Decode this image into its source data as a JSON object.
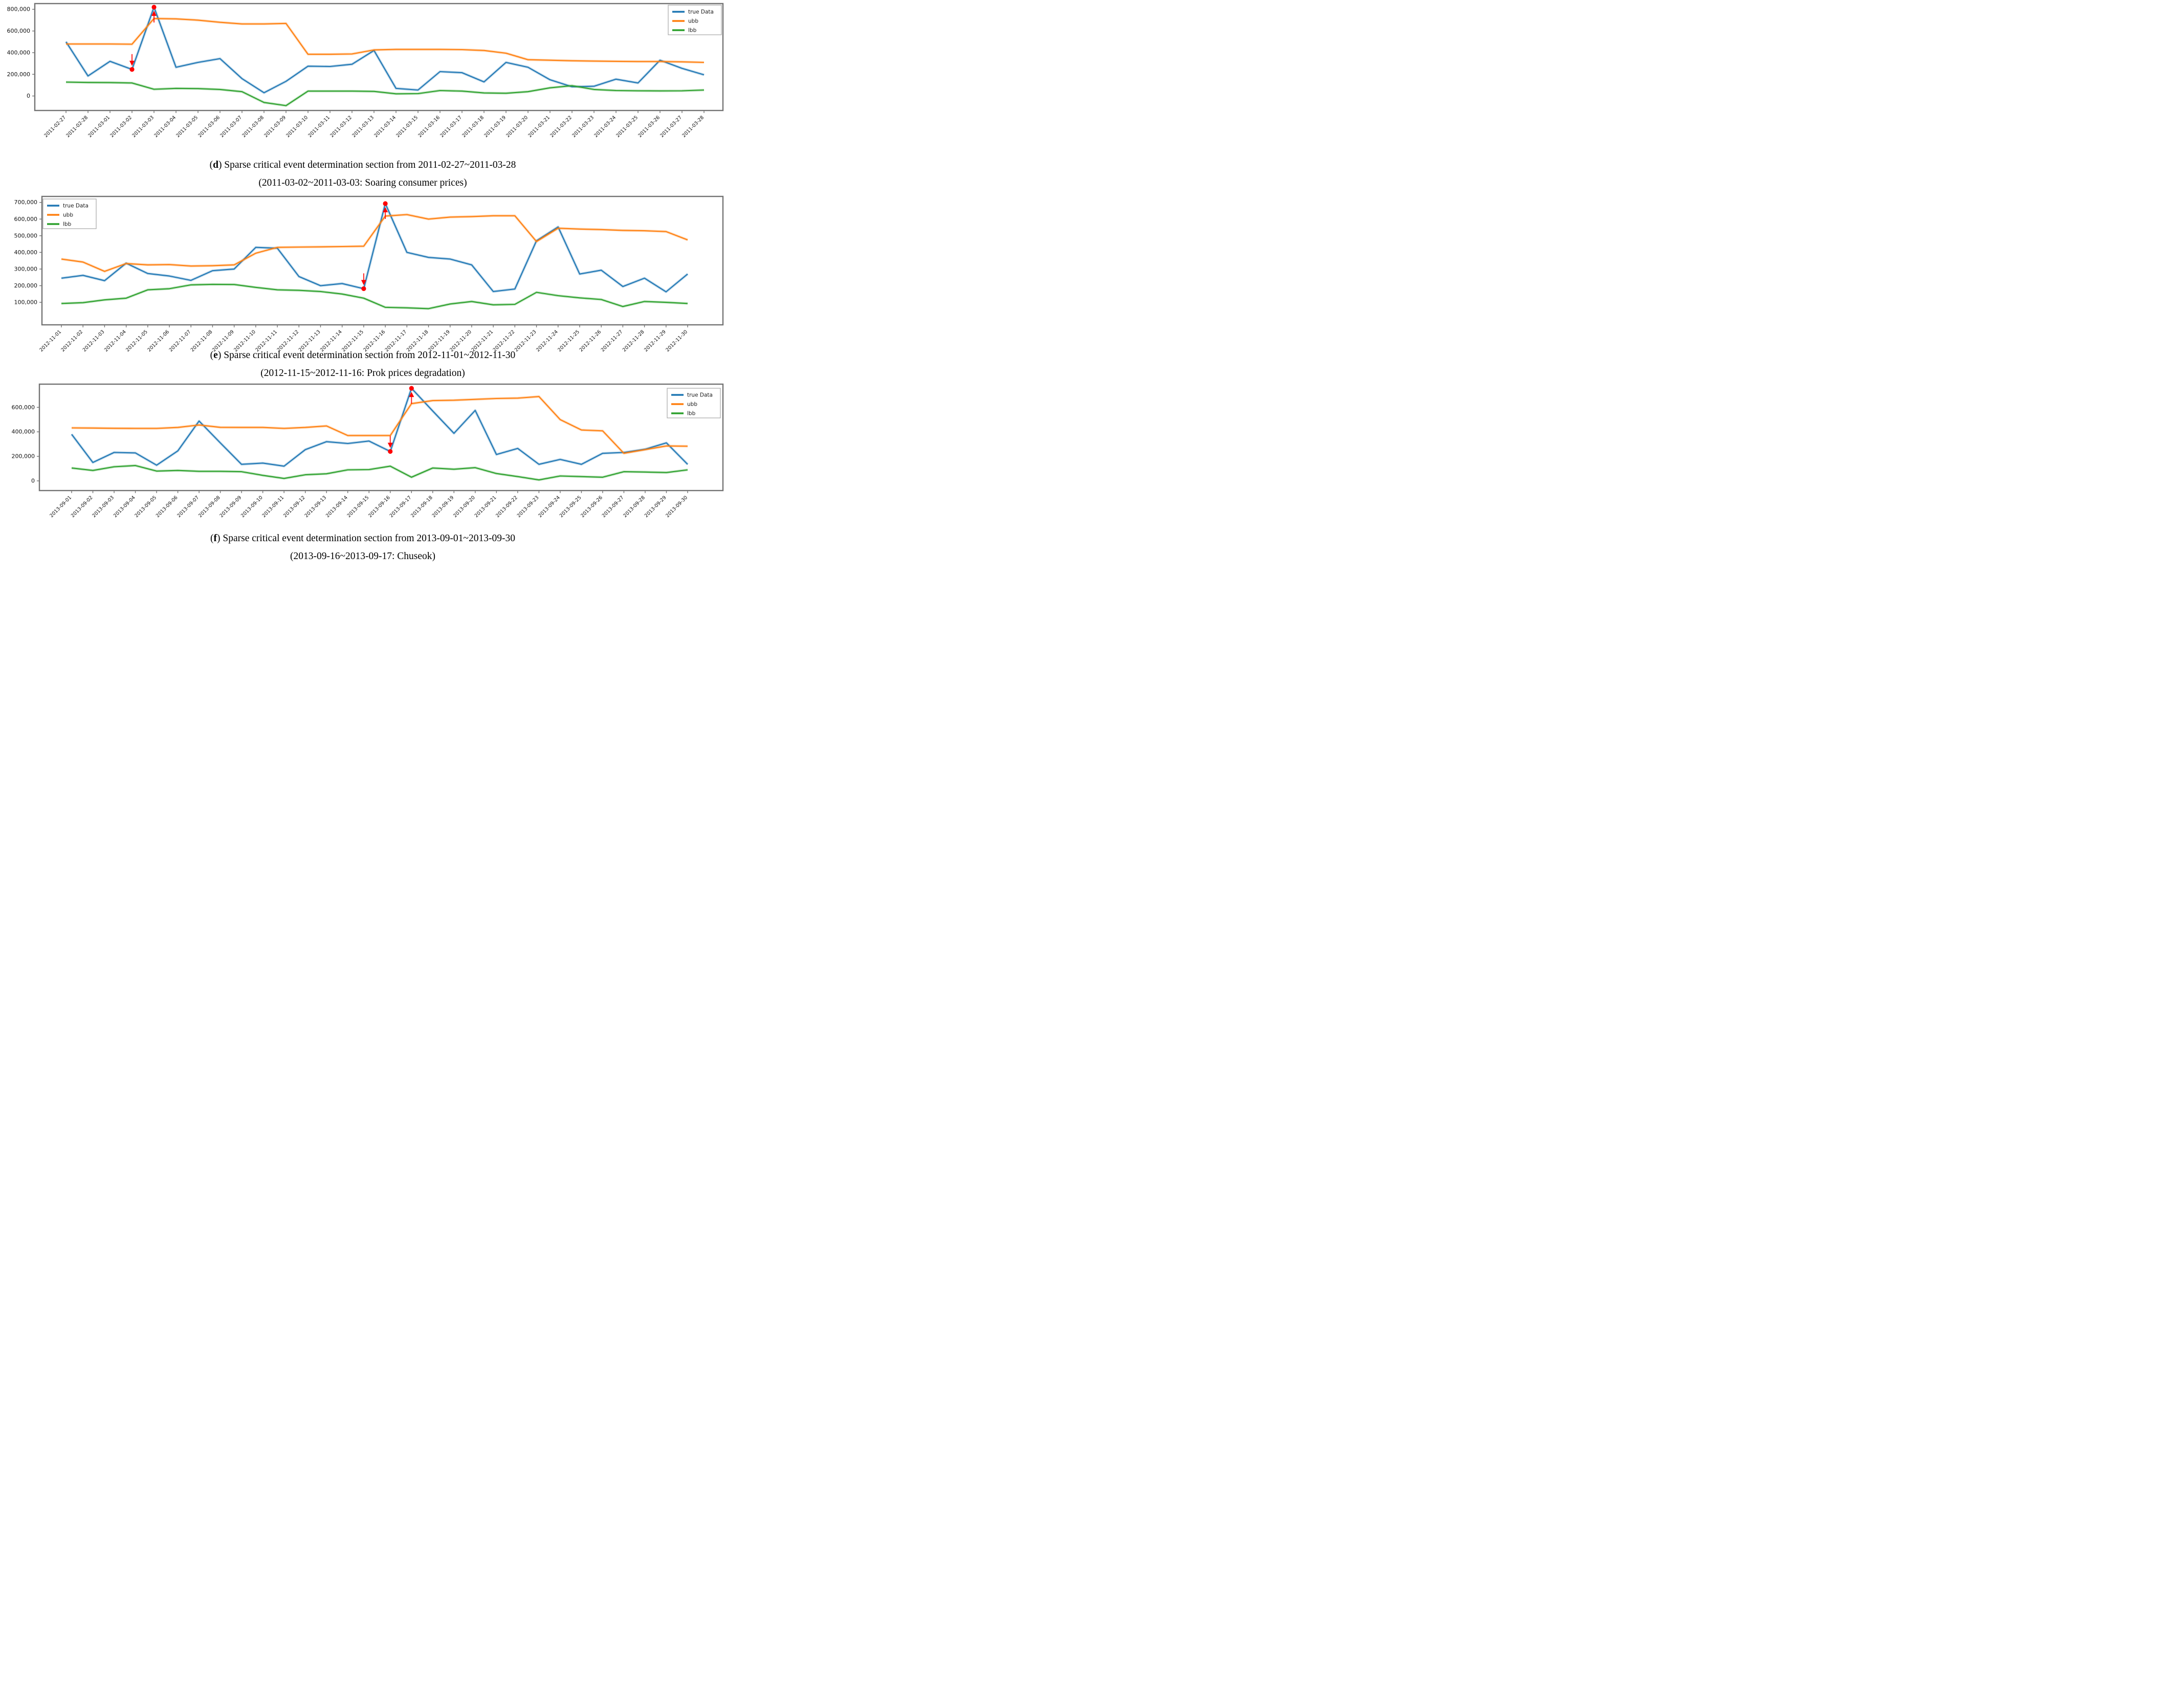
{
  "figure": {
    "panels": [
      {
        "letter": "d",
        "cap_open": "(",
        "line1_rest": ") Sparse critical event determination section from 2011-02-27~2011-03-28",
        "line2": "(2011-03-02~2011-03-03: Soaring consumer prices)"
      },
      {
        "letter": "e",
        "cap_open": "(",
        "line1_rest": ") Sparse critical event determination section from 2012-11-01~2012-11-30",
        "line2": "(2012-11-15~2012-11-16: Prok prices degradation)"
      },
      {
        "letter": "f",
        "cap_open": "(",
        "line1_rest": ") Sparse critical event determination section from 2013-09-01~2013-09-30",
        "line2": "(2013-09-16~2013-09-17: Chuseok)"
      }
    ]
  },
  "chart_data": [
    {
      "id": "d",
      "type": "line",
      "title": "",
      "grid": false,
      "legend_position": "upper right",
      "legend_labels": [
        "true Data",
        "ubb",
        "lbb"
      ],
      "x_dates": [
        "2011-02-27",
        "2011-02-28",
        "2011-03-01",
        "2011-03-02",
        "2011-03-03",
        "2011-03-04",
        "2011-03-05",
        "2011-03-06",
        "2011-03-07",
        "2011-03-08",
        "2011-03-09",
        "2011-03-10",
        "2011-03-11",
        "2011-03-12",
        "2011-03-13",
        "2011-03-14",
        "2011-03-15",
        "2011-03-16",
        "2011-03-17",
        "2011-03-18",
        "2011-03-19",
        "2011-03-20",
        "2011-03-21",
        "2011-03-22",
        "2011-03-23",
        "2011-03-24",
        "2011-03-25",
        "2011-03-26",
        "2011-03-27",
        "2011-03-28"
      ],
      "ylim": [
        -134000,
        853000
      ],
      "yticks": [
        0,
        200000,
        400000,
        600000,
        800000
      ],
      "series": [
        {
          "name": "true Data",
          "color": "#1f77b4",
          "values": [
            500000,
            185000,
            320000,
            245000,
            820000,
            265000,
            310000,
            345000,
            160000,
            30000,
            135000,
            275000,
            272000,
            293000,
            420000,
            70000,
            55000,
            225000,
            215000,
            130000,
            310000,
            265000,
            150000,
            85000,
            90000,
            155000,
            120000,
            330000,
            255000,
            195000
          ]
        },
        {
          "name": "ubb",
          "color": "#ff7f0e",
          "values": [
            480000,
            480000,
            480000,
            478000,
            715000,
            712000,
            700000,
            680000,
            665000,
            665000,
            670000,
            385000,
            385000,
            388000,
            425000,
            430000,
            430000,
            430000,
            428000,
            420000,
            395000,
            335000,
            330000,
            325000,
            322000,
            320000,
            318000,
            318000,
            315000,
            310000
          ]
        },
        {
          "name": "lbb",
          "color": "#2ca02c",
          "values": [
            128000,
            125000,
            124000,
            120000,
            62000,
            70000,
            68000,
            60000,
            40000,
            -60000,
            -89000,
            45000,
            45000,
            45000,
            42000,
            20000,
            22000,
            50000,
            45000,
            28000,
            25000,
            40000,
            75000,
            95000,
            60000,
            50000,
            48000,
            47000,
            48000,
            55000
          ]
        }
      ],
      "markers": [
        {
          "date": "2011-03-02",
          "value": 245000,
          "direction": "down",
          "color": "#ff0000"
        },
        {
          "date": "2011-03-03",
          "value": 820000,
          "direction": "up",
          "color": "#ff0000"
        }
      ]
    },
    {
      "id": "e",
      "type": "line",
      "title": "",
      "grid": false,
      "legend_position": "upper left",
      "legend_labels": [
        "true Data",
        "ubb",
        "lbb"
      ],
      "x_dates": [
        "2012-11-01",
        "2012-11-02",
        "2012-11-03",
        "2012-11-04",
        "2012-11-05",
        "2012-11-06",
        "2012-11-07",
        "2012-11-08",
        "2012-11-09",
        "2012-11-10",
        "2012-11-11",
        "2012-11-12",
        "2012-11-13",
        "2012-11-14",
        "2012-11-15",
        "2012-11-16",
        "2012-11-17",
        "2012-11-18",
        "2012-11-19",
        "2012-11-20",
        "2012-11-21",
        "2012-11-22",
        "2012-11-23",
        "2012-11-24",
        "2012-11-25",
        "2012-11-26",
        "2012-11-27",
        "2012-11-28",
        "2012-11-29",
        "2012-11-30"
      ],
      "ylim": [
        -35000,
        736000
      ],
      "yticks": [
        100000,
        200000,
        300000,
        400000,
        500000,
        600000,
        700000
      ],
      "series": [
        {
          "name": "true Data",
          "color": "#1f77b4",
          "values": [
            245000,
            262000,
            230000,
            335000,
            273000,
            258000,
            232000,
            290000,
            300000,
            430000,
            425000,
            255000,
            200000,
            213000,
            182000,
            693000,
            400000,
            370000,
            360000,
            325000,
            165000,
            180000,
            470000,
            553000,
            270000,
            293000,
            195000,
            245000,
            163000,
            270000
          ]
        },
        {
          "name": "ubb",
          "color": "#ff7f0e",
          "values": [
            360000,
            342000,
            286000,
            333000,
            325000,
            327000,
            318000,
            320000,
            325000,
            395000,
            430000,
            432000,
            433000,
            435000,
            437000,
            618000,
            627000,
            600000,
            612000,
            615000,
            620000,
            620000,
            465000,
            545000,
            540000,
            537000,
            532000,
            530000,
            525000,
            475000
          ]
        },
        {
          "name": "lbb",
          "color": "#2ca02c",
          "values": [
            93000,
            98000,
            115000,
            125000,
            175000,
            182000,
            205000,
            208000,
            207000,
            190000,
            175000,
            172000,
            165000,
            150000,
            125000,
            70000,
            67000,
            62000,
            90000,
            105000,
            85000,
            88000,
            160000,
            140000,
            127000,
            117000,
            75000,
            105000,
            100000,
            93000
          ]
        }
      ],
      "markers": [
        {
          "date": "2012-11-15",
          "value": 182000,
          "direction": "down",
          "color": "#ff0000"
        },
        {
          "date": "2012-11-16",
          "value": 693000,
          "direction": "up",
          "color": "#ff0000"
        }
      ]
    },
    {
      "id": "f",
      "type": "line",
      "title": "",
      "grid": false,
      "legend_position": "upper right",
      "legend_labels": [
        "true Data",
        "ubb",
        "lbb"
      ],
      "x_dates": [
        "2013-09-01",
        "2013-09-02",
        "2013-09-03",
        "2013-09-04",
        "2013-09-05",
        "2013-09-06",
        "2013-09-07",
        "2013-09-08",
        "2013-09-09",
        "2013-09-10",
        "2013-09-11",
        "2013-09-12",
        "2013-09-13",
        "2013-09-14",
        "2013-09-15",
        "2013-09-16",
        "2013-09-17",
        "2013-09-18",
        "2013-09-19",
        "2013-09-20",
        "2013-09-21",
        "2013-09-22",
        "2013-09-23",
        "2013-09-24",
        "2013-09-25",
        "2013-09-26",
        "2013-09-27",
        "2013-09-28",
        "2013-09-29",
        "2013-09-30"
      ],
      "ylim": [
        -79000,
        789000
      ],
      "yticks": [
        0,
        200000,
        400000,
        600000
      ],
      "series": [
        {
          "name": "true Data",
          "color": "#1f77b4",
          "values": [
            380000,
            150000,
            232000,
            228000,
            128000,
            245000,
            488000,
            310000,
            135000,
            145000,
            120000,
            255000,
            320000,
            305000,
            325000,
            240000,
            755000,
            570000,
            388000,
            575000,
            215000,
            265000,
            135000,
            175000,
            135000,
            225000,
            232000,
            258000,
            310000,
            135000
          ]
        },
        {
          "name": "ubb",
          "color": "#ff7f0e",
          "values": [
            432000,
            431000,
            429000,
            428000,
            428000,
            436000,
            456000,
            437000,
            436000,
            436000,
            428000,
            436000,
            448000,
            370000,
            370000,
            370000,
            630000,
            655000,
            658000,
            665000,
            672000,
            675000,
            688000,
            500000,
            415000,
            408000,
            225000,
            255000,
            285000,
            283000
          ]
        },
        {
          "name": "lbb",
          "color": "#2ca02c",
          "values": [
            105000,
            85000,
            115000,
            125000,
            80000,
            85000,
            78000,
            78000,
            75000,
            45000,
            20000,
            50000,
            58000,
            90000,
            92000,
            120000,
            30000,
            105000,
            95000,
            108000,
            60000,
            35000,
            8000,
            40000,
            35000,
            30000,
            75000,
            72000,
            68000,
            90000
          ]
        }
      ],
      "markers": [
        {
          "date": "2013-09-16",
          "value": 240000,
          "direction": "down",
          "color": "#ff0000"
        },
        {
          "date": "2013-09-17",
          "value": 755000,
          "direction": "up",
          "color": "#ff0000"
        }
      ]
    }
  ]
}
